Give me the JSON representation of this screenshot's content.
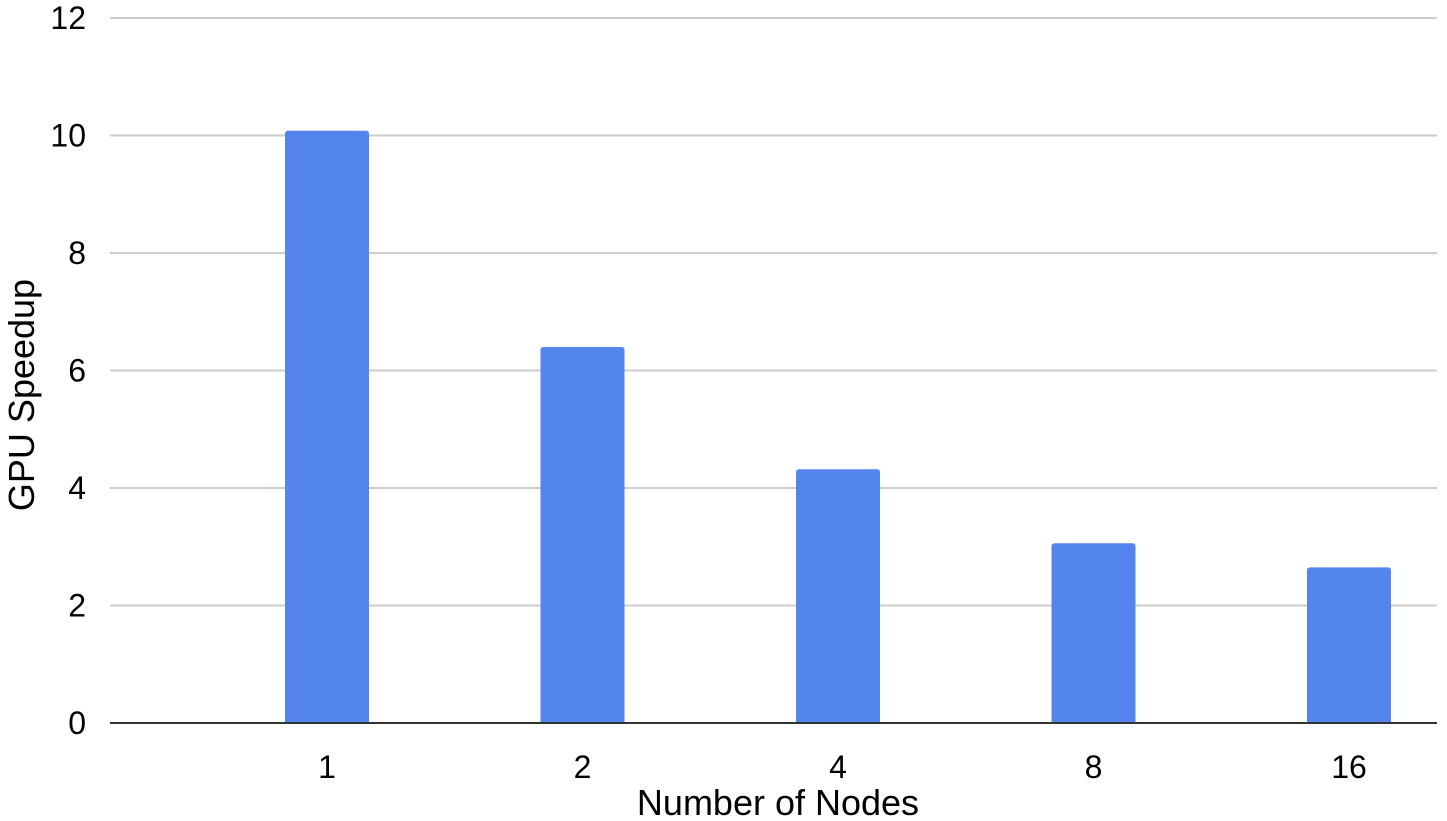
{
  "chart_data": {
    "type": "bar",
    "categories": [
      "1",
      "2",
      "4",
      "8",
      "16"
    ],
    "values": [
      10.08,
      6.4,
      4.32,
      3.06,
      2.65
    ],
    "title": "",
    "xlabel": "Number of Nodes",
    "ylabel": "GPU Speedup",
    "ylim": [
      0,
      12
    ],
    "yticks": [
      0,
      2,
      4,
      6,
      8,
      10,
      12
    ],
    "grid": true,
    "legend": "none",
    "bar_color": "#5385ec"
  }
}
